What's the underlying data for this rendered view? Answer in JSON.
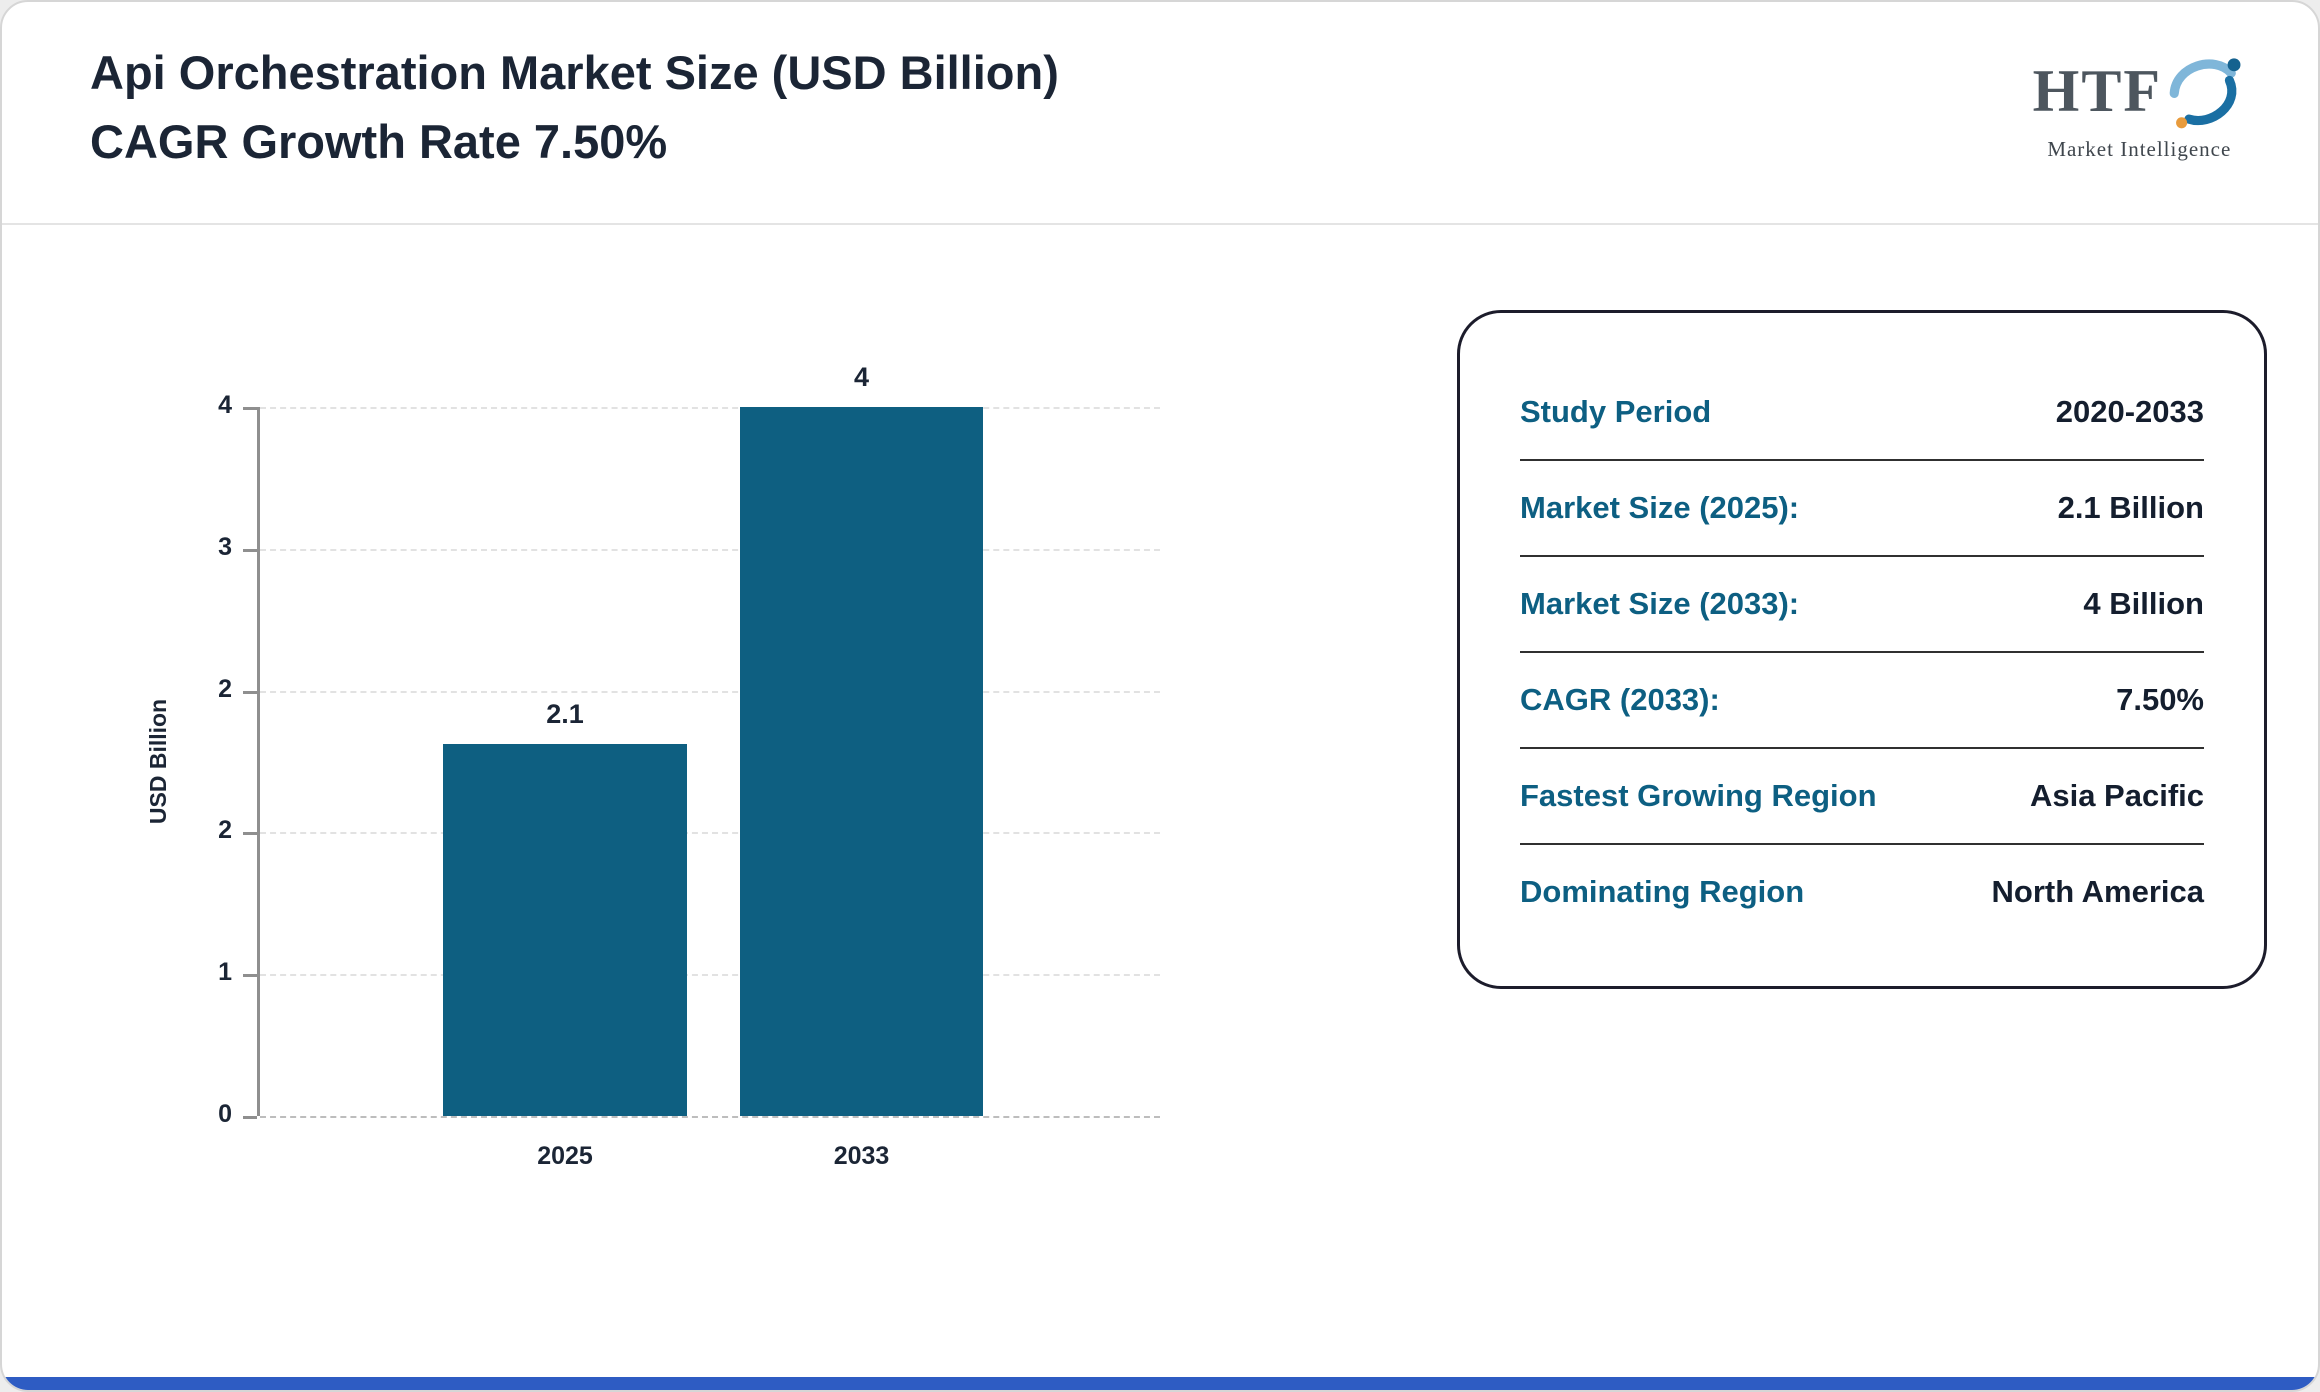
{
  "page": {
    "title_line1": "Api Orchestration Market Size (USD Billion)",
    "title_line2": "CAGR Growth Rate 7.50%"
  },
  "logo": {
    "text": "HTF",
    "subtext": "Market Intelligence"
  },
  "chart_data": {
    "type": "bar",
    "title": "Api Orchestration Market Size (USD Billion) CAGR Growth Rate 7.50%",
    "categories": [
      "2025",
      "2033"
    ],
    "values": [
      2.1,
      4
    ],
    "bar_labels": [
      "2.1",
      "4"
    ],
    "xlabel": "",
    "ylabel": "USD Billion",
    "ylim": [
      0,
      4
    ],
    "ytick_labels": [
      "0",
      "1",
      "2",
      "2",
      "3",
      "4"
    ],
    "grid": true,
    "legend": false,
    "bar_color": "#0e5f81"
  },
  "summary_card": {
    "rows": [
      {
        "label": "Study Period",
        "value": "2020-2033"
      },
      {
        "label": "Market Size (2025):",
        "value": "2.1 Billion"
      },
      {
        "label": "Market Size (2033):",
        "value": "4 Billion"
      },
      {
        "label": "CAGR (2033):",
        "value": "7.50%"
      },
      {
        "label": "Fastest Growing Region",
        "value": "Asia Pacific"
      },
      {
        "label": "Dominating Region",
        "value": "North America"
      }
    ]
  },
  "colors": {
    "bar": "#0e5f81",
    "label_teal": "#0d5f82",
    "value_navy": "#141e2e",
    "title_navy": "#1b2535",
    "accent_bottom": "#2e5cc3"
  }
}
